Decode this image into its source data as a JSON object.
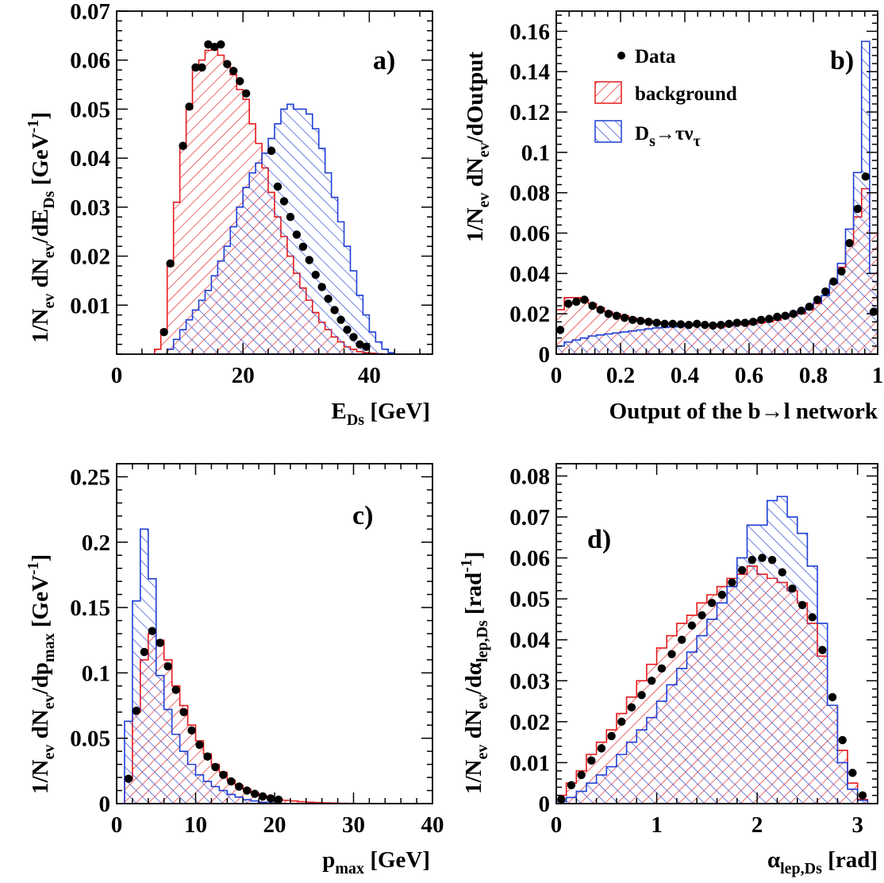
{
  "chart_data": [
    {
      "type": "histogram",
      "panel_label": "a)",
      "xlabel": "E_Ds [GeV]",
      "ylabel": "1/N_ev dN_ev/dE_Ds [GeV^-1]",
      "xlim": [
        0,
        50
      ],
      "ylim": [
        0,
        0.07
      ],
      "xticks": [
        0,
        20,
        40
      ],
      "yticks": [
        0.01,
        0.02,
        0.03,
        0.04,
        0.05,
        0.06,
        0.07
      ],
      "ytick_labels": [
        "0.01",
        "0.02",
        "0.03",
        "0.04",
        "0.05",
        "0.06",
        "0.07"
      ],
      "bin_edges": [
        6,
        7,
        8,
        9,
        10,
        11,
        12,
        13,
        14,
        15,
        16,
        17,
        18,
        19,
        20,
        21,
        22,
        23,
        24,
        25,
        26,
        27,
        28,
        29,
        30,
        31,
        32,
        33,
        34,
        35,
        36,
        37,
        38,
        39,
        40,
        41,
        42,
        43,
        44,
        45
      ],
      "series": [
        {
          "name": "background",
          "kind": "hist",
          "color": "#e41a1c",
          "values": [
            0.001,
            0.005,
            0.018,
            0.031,
            0.042,
            0.05,
            0.058,
            0.06,
            0.062,
            0.063,
            0.061,
            0.059,
            0.057,
            0.054,
            0.052,
            0.047,
            0.043,
            0.038,
            0.033,
            0.028,
            0.024,
            0.02,
            0.0165,
            0.0135,
            0.011,
            0.0085,
            0.0065,
            0.005,
            0.0035,
            0.0025,
            0.0015,
            0.001,
            0.0005,
            0.0003,
            0.0002,
            0.0001,
            0,
            0,
            0
          ]
        },
        {
          "name": "D_s→τν_τ",
          "kind": "hist",
          "color": "#1f3fd4",
          "values": [
            0,
            0,
            0.001,
            0.003,
            0.005,
            0.007,
            0.009,
            0.011,
            0.013,
            0.016,
            0.019,
            0.022,
            0.026,
            0.03,
            0.034,
            0.037,
            0.039,
            0.041,
            0.044,
            0.047,
            0.05,
            0.051,
            0.05,
            0.05,
            0.049,
            0.046,
            0.042,
            0.037,
            0.032,
            0.027,
            0.022,
            0.017,
            0.012,
            0.008,
            0.0045,
            0.0025,
            0.001,
            0.0003,
            0
          ]
        },
        {
          "name": "Data",
          "kind": "points",
          "x": [
            7.5,
            8.5,
            10.5,
            11.5,
            12.5,
            13.5,
            14.5,
            15.5,
            16.5,
            17.5,
            18.5,
            19.5,
            20.5,
            24.5,
            25.5,
            26.5,
            27.5,
            28.5,
            29.5,
            30.5,
            31.5,
            32.5,
            33.5,
            34.5,
            35.5,
            36.5,
            37.5,
            38.5,
            39.5
          ],
          "y": [
            0.0045,
            0.0185,
            0.0425,
            0.0505,
            0.0585,
            0.0585,
            0.0632,
            0.0627,
            0.0632,
            0.0592,
            0.0578,
            0.0557,
            0.0532,
            0.0415,
            0.0342,
            0.0312,
            0.028,
            0.0244,
            0.0219,
            0.0192,
            0.0162,
            0.0137,
            0.0113,
            0.009,
            0.007,
            0.005,
            0.0035,
            0.002,
            0.0015
          ]
        }
      ]
    },
    {
      "type": "histogram",
      "panel_label": "b)",
      "xlabel": "Output of the b→l network",
      "ylabel": "1/N_ev dN_ev/dOutput",
      "xlim": [
        0,
        1
      ],
      "ylim": [
        0,
        0.17
      ],
      "xticks": [
        0,
        0.2,
        0.4,
        0.6,
        0.8,
        1
      ],
      "xtick_labels": [
        "0",
        "0.2",
        "0.4",
        "0.6",
        "0.8",
        "1"
      ],
      "yticks": [
        0,
        0.02,
        0.04,
        0.06,
        0.08,
        0.1,
        0.12,
        0.14,
        0.16
      ],
      "ytick_labels": [
        "0",
        "0.02",
        "0.04",
        "0.06",
        "0.08",
        "0.1",
        "0.12",
        "0.14",
        "0.16"
      ],
      "bin_edges": [
        0,
        0.025,
        0.05,
        0.075,
        0.1,
        0.125,
        0.15,
        0.175,
        0.2,
        0.225,
        0.25,
        0.275,
        0.3,
        0.325,
        0.35,
        0.375,
        0.4,
        0.425,
        0.45,
        0.475,
        0.5,
        0.525,
        0.55,
        0.575,
        0.6,
        0.625,
        0.65,
        0.675,
        0.7,
        0.725,
        0.75,
        0.775,
        0.8,
        0.825,
        0.85,
        0.875,
        0.9,
        0.925,
        0.95,
        0.975,
        1.0
      ],
      "series": [
        {
          "name": "background",
          "kind": "hist",
          "color": "#e41a1c",
          "values": [
            0.022,
            0.028,
            0.028,
            0.027,
            0.025,
            0.023,
            0.021,
            0.02,
            0.019,
            0.018,
            0.017,
            0.0165,
            0.016,
            0.0155,
            0.015,
            0.015,
            0.0148,
            0.0145,
            0.0145,
            0.014,
            0.0135,
            0.014,
            0.0145,
            0.0148,
            0.015,
            0.0155,
            0.016,
            0.0168,
            0.018,
            0.019,
            0.02,
            0.022,
            0.025,
            0.029,
            0.035,
            0.043,
            0.055,
            0.068,
            0.082,
            0.06
          ]
        },
        {
          "name": "D_s→τν_τ",
          "kind": "hist",
          "color": "#1f3fd4",
          "values": [
            0.004,
            0.006,
            0.007,
            0.008,
            0.009,
            0.0095,
            0.01,
            0.0105,
            0.011,
            0.0115,
            0.012,
            0.0125,
            0.013,
            0.0132,
            0.0135,
            0.0138,
            0.014,
            0.0142,
            0.0145,
            0.0148,
            0.015,
            0.0152,
            0.0155,
            0.016,
            0.0165,
            0.017,
            0.0175,
            0.018,
            0.019,
            0.02,
            0.0215,
            0.023,
            0.0255,
            0.029,
            0.035,
            0.045,
            0.062,
            0.09,
            0.155,
            0.04
          ]
        },
        {
          "name": "Data",
          "kind": "points",
          "x": [
            0.0125,
            0.0375,
            0.0625,
            0.0875,
            0.1125,
            0.1375,
            0.1625,
            0.1875,
            0.2125,
            0.2375,
            0.2625,
            0.2875,
            0.3125,
            0.3375,
            0.3625,
            0.3875,
            0.4125,
            0.4375,
            0.4625,
            0.4875,
            0.5125,
            0.5375,
            0.5625,
            0.5875,
            0.6125,
            0.6375,
            0.6625,
            0.6875,
            0.7125,
            0.7375,
            0.7625,
            0.7875,
            0.8125,
            0.8375,
            0.8625,
            0.8875,
            0.9125,
            0.9375,
            0.9625,
            0.9875
          ],
          "y": [
            0.012,
            0.025,
            0.026,
            0.027,
            0.024,
            0.022,
            0.02,
            0.019,
            0.018,
            0.017,
            0.0165,
            0.016,
            0.0155,
            0.015,
            0.015,
            0.0148,
            0.0145,
            0.015,
            0.0145,
            0.0142,
            0.0145,
            0.015,
            0.0155,
            0.0155,
            0.016,
            0.017,
            0.0175,
            0.0185,
            0.019,
            0.02,
            0.0215,
            0.0235,
            0.027,
            0.031,
            0.036,
            0.041,
            0.055,
            0.072,
            0.088,
            0.021
          ]
        }
      ],
      "legend": {
        "placement": "top-center",
        "entries": [
          "Data",
          "background",
          "D_s→τν_τ"
        ]
      }
    },
    {
      "type": "histogram",
      "panel_label": "c)",
      "xlabel": "p_max [GeV]",
      "ylabel": "1/N_ev dN_ev/dp_max [GeV^-1]",
      "xlim": [
        0,
        40
      ],
      "ylim": [
        0,
        0.26
      ],
      "xticks": [
        0,
        10,
        20,
        30,
        40
      ],
      "yticks": [
        0,
        0.05,
        0.1,
        0.15,
        0.2,
        0.25
      ],
      "ytick_labels": [
        "0",
        "0.05",
        "0.1",
        "0.15",
        "0.2",
        "0.25"
      ],
      "bin_edges": [
        0,
        1,
        2,
        3,
        4,
        5,
        6,
        7,
        8,
        9,
        10,
        11,
        12,
        13,
        14,
        15,
        16,
        17,
        18,
        19,
        20,
        21,
        22,
        23,
        24,
        25,
        26,
        27,
        28,
        29,
        30,
        31,
        32,
        33,
        34,
        35,
        36,
        37,
        38,
        39,
        40
      ],
      "series": [
        {
          "name": "background",
          "kind": "hist",
          "color": "#e41a1c",
          "values": [
            0.0,
            0.018,
            0.07,
            0.11,
            0.13,
            0.125,
            0.11,
            0.09,
            0.075,
            0.06,
            0.048,
            0.038,
            0.03,
            0.024,
            0.018,
            0.014,
            0.011,
            0.008,
            0.006,
            0.0045,
            0.0035,
            0.0025,
            0.002,
            0.0015,
            0.001,
            0.0008,
            0.0006,
            0.0004,
            0.0003,
            0.0002,
            0.0001,
            0,
            0,
            0,
            0,
            0,
            0,
            0,
            0,
            0
          ]
        },
        {
          "name": "D_s→τν_τ",
          "kind": "hist",
          "color": "#1f3fd4",
          "values": [
            0.0,
            0.063,
            0.155,
            0.21,
            0.172,
            0.098,
            0.072,
            0.053,
            0.04,
            0.03,
            0.022,
            0.017,
            0.013,
            0.01,
            0.007,
            0.005,
            0.003,
            0.002,
            0.001,
            0.0005,
            0.0002,
            0,
            0,
            0,
            0,
            0,
            0,
            0,
            0,
            0,
            0,
            0,
            0,
            0,
            0,
            0,
            0,
            0,
            0,
            0
          ]
        },
        {
          "name": "Data",
          "kind": "points",
          "x": [
            1.5,
            2.5,
            3.5,
            4.5,
            5.5,
            6.5,
            7.5,
            8.5,
            9.5,
            10.5,
            11.5,
            12.5,
            13.5,
            14.5,
            15.5,
            16.5,
            17.5,
            18.5,
            19.5,
            20.5
          ],
          "y": [
            0.019,
            0.071,
            0.116,
            0.132,
            0.123,
            0.105,
            0.087,
            0.07,
            0.056,
            0.045,
            0.036,
            0.028,
            0.022,
            0.017,
            0.013,
            0.01,
            0.0075,
            0.0055,
            0.004,
            0.003
          ]
        }
      ]
    },
    {
      "type": "histogram",
      "panel_label": "d)",
      "xlabel": "α_lep,Ds [rad]",
      "ylabel": "1/N_ev dN_ev/dα_lep,Ds [rad^-1]",
      "xlim": [
        0,
        3.2
      ],
      "ylim": [
        0,
        0.083
      ],
      "xticks": [
        0,
        1,
        2,
        3
      ],
      "yticks": [
        0,
        0.01,
        0.02,
        0.03,
        0.04,
        0.05,
        0.06,
        0.07,
        0.08
      ],
      "ytick_labels": [
        "0",
        "0.01",
        "0.02",
        "0.03",
        "0.04",
        "0.05",
        "0.06",
        "0.07",
        "0.08"
      ],
      "bin_edges": [
        0,
        0.1,
        0.2,
        0.3,
        0.4,
        0.5,
        0.6,
        0.7,
        0.8,
        0.9,
        1.0,
        1.1,
        1.2,
        1.3,
        1.4,
        1.5,
        1.6,
        1.7,
        1.8,
        1.9,
        2.0,
        2.1,
        2.2,
        2.3,
        2.4,
        2.5,
        2.6,
        2.7,
        2.8,
        2.9,
        3.0,
        3.1
      ],
      "series": [
        {
          "name": "background",
          "kind": "hist",
          "color": "#e41a1c",
          "values": [
            0.002,
            0.005,
            0.008,
            0.012,
            0.015,
            0.018,
            0.022,
            0.026,
            0.03,
            0.034,
            0.038,
            0.041,
            0.044,
            0.046,
            0.049,
            0.051,
            0.053,
            0.055,
            0.056,
            0.058,
            0.056,
            0.055,
            0.054,
            0.052,
            0.049,
            0.044,
            0.036,
            0.024,
            0.013,
            0.005,
            0.001
          ]
        },
        {
          "name": "D_s→τν_τ",
          "kind": "hist",
          "color": "#1f3fd4",
          "values": [
            0.0005,
            0.0015,
            0.003,
            0.005,
            0.007,
            0.009,
            0.012,
            0.015,
            0.018,
            0.021,
            0.025,
            0.029,
            0.033,
            0.037,
            0.041,
            0.045,
            0.049,
            0.053,
            0.06,
            0.068,
            0.068,
            0.074,
            0.075,
            0.07,
            0.066,
            0.058,
            0.044,
            0.024,
            0.01,
            0.0035,
            0.0008
          ]
        },
        {
          "name": "Data",
          "kind": "points",
          "x": [
            0.05,
            0.15,
            0.25,
            0.35,
            0.45,
            0.55,
            0.65,
            0.75,
            0.85,
            0.95,
            1.05,
            1.15,
            1.25,
            1.35,
            1.45,
            1.55,
            1.65,
            1.75,
            1.85,
            1.95,
            2.05,
            2.15,
            2.25,
            2.35,
            2.45,
            2.55,
            2.65,
            2.75,
            2.85,
            2.95,
            3.05
          ],
          "y": [
            0.001,
            0.0045,
            0.007,
            0.0105,
            0.0135,
            0.0165,
            0.02,
            0.0235,
            0.0265,
            0.03,
            0.033,
            0.0365,
            0.04,
            0.0435,
            0.046,
            0.049,
            0.051,
            0.054,
            0.057,
            0.0595,
            0.06,
            0.0595,
            0.0565,
            0.0525,
            0.0485,
            0.0455,
            0.0375,
            0.026,
            0.0155,
            0.0075,
            0.002
          ]
        }
      ]
    }
  ]
}
